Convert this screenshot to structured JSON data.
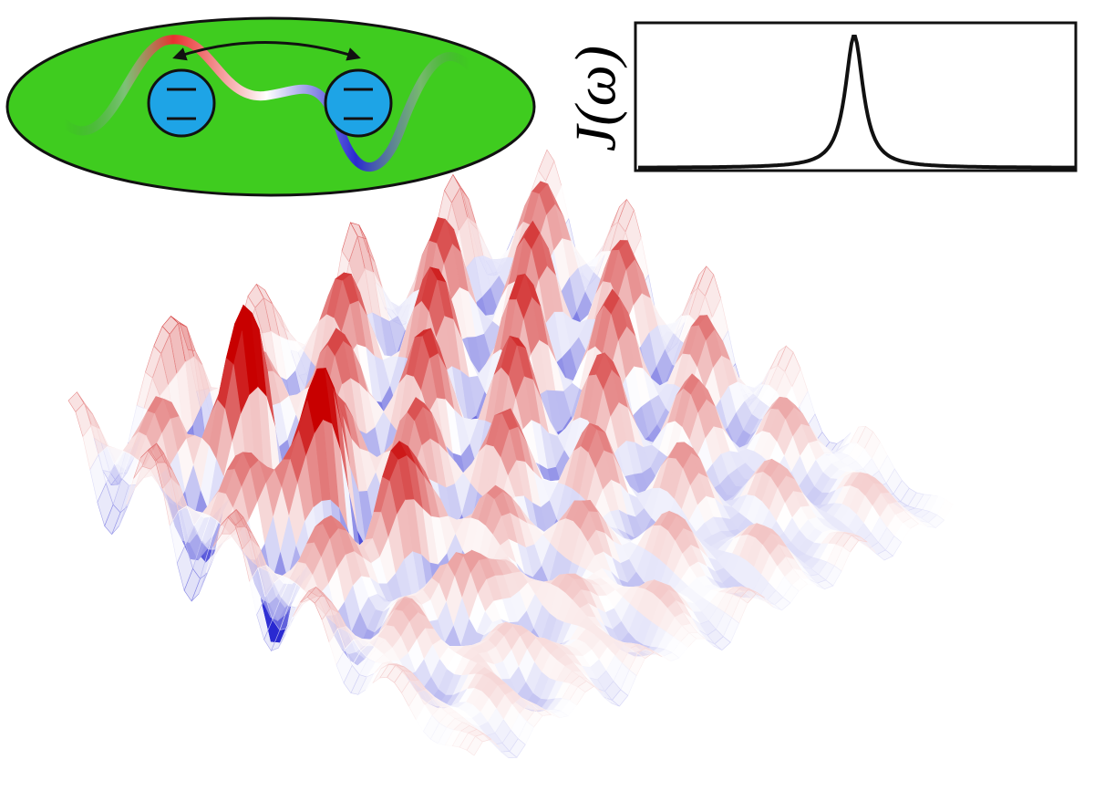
{
  "spectral_panel": {
    "axis_label": "J(ω)"
  }
}
